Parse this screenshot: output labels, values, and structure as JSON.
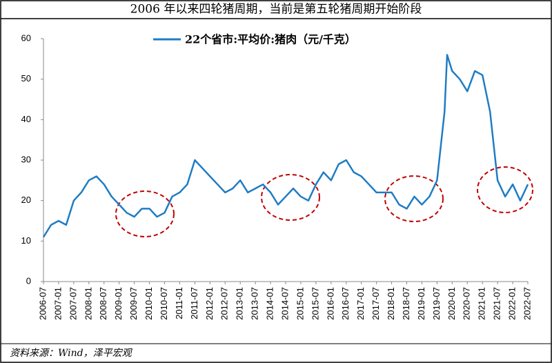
{
  "chart_data": {
    "type": "line",
    "title": "2006 年以来四轮猪周期，当前是第五轮猪周期开始阶段",
    "source": "资料来源：Wind，泽平宏观",
    "x": [
      "2006-07",
      "2006-10",
      "2007-01",
      "2007-04",
      "2007-07",
      "2007-10",
      "2008-01",
      "2008-04",
      "2008-07",
      "2008-10",
      "2009-01",
      "2009-04",
      "2009-07",
      "2009-10",
      "2010-01",
      "2010-04",
      "2010-07",
      "2010-10",
      "2011-01",
      "2011-04",
      "2011-07",
      "2011-10",
      "2012-01",
      "2012-04",
      "2012-07",
      "2012-10",
      "2013-01",
      "2013-04",
      "2013-07",
      "2013-10",
      "2014-01",
      "2014-04",
      "2014-07",
      "2014-10",
      "2015-01",
      "2015-04",
      "2015-07",
      "2015-10",
      "2016-01",
      "2016-04",
      "2016-07",
      "2016-10",
      "2017-01",
      "2017-04",
      "2017-07",
      "2017-10",
      "2018-01",
      "2018-04",
      "2018-07",
      "2018-10",
      "2019-01",
      "2019-04",
      "2019-07",
      "2019-10",
      "2019-11",
      "2020-01",
      "2020-04",
      "2020-07",
      "2020-10",
      "2021-01",
      "2021-04",
      "2021-07",
      "2021-10",
      "2022-01",
      "2022-04",
      "2022-07"
    ],
    "series": [
      {
        "name": "22个省市:平均价:猪肉（元/千克）",
        "color": "#1f7cc4",
        "values": [
          11,
          14,
          15,
          14,
          20,
          22,
          25,
          26,
          24,
          21,
          19,
          17,
          16,
          18,
          18,
          16,
          17,
          21,
          22,
          24,
          30,
          28,
          26,
          24,
          22,
          23,
          25,
          22,
          23,
          24,
          22,
          19,
          21,
          23,
          21,
          20,
          24,
          27,
          25,
          29,
          30,
          27,
          26,
          24,
          22,
          22,
          22,
          19,
          18,
          21,
          19,
          21,
          25,
          42,
          56,
          52,
          50,
          47,
          52,
          51,
          42,
          25,
          21,
          24,
          20,
          24
        ]
      }
    ],
    "xlim": [
      "2006-07",
      "2022-07"
    ],
    "xticks": [
      "2006-07",
      "2007-01",
      "2007-07",
      "2008-01",
      "2008-07",
      "2009-01",
      "2009-07",
      "2010-01",
      "2010-07",
      "2011-01",
      "2011-07",
      "2012-01",
      "2012-07",
      "2013-01",
      "2013-07",
      "2014-01",
      "2014-07",
      "2015-01",
      "2015-07",
      "2016-01",
      "2016-07",
      "2017-01",
      "2017-07",
      "2018-01",
      "2018-07",
      "2019-01",
      "2019-07",
      "2020-01",
      "2020-07",
      "2021-01",
      "2021-07",
      "2022-01",
      "2022-07"
    ],
    "ylim": [
      0,
      60
    ],
    "yticks": [
      0,
      10,
      20,
      30,
      40,
      50,
      60
    ]
  }
}
